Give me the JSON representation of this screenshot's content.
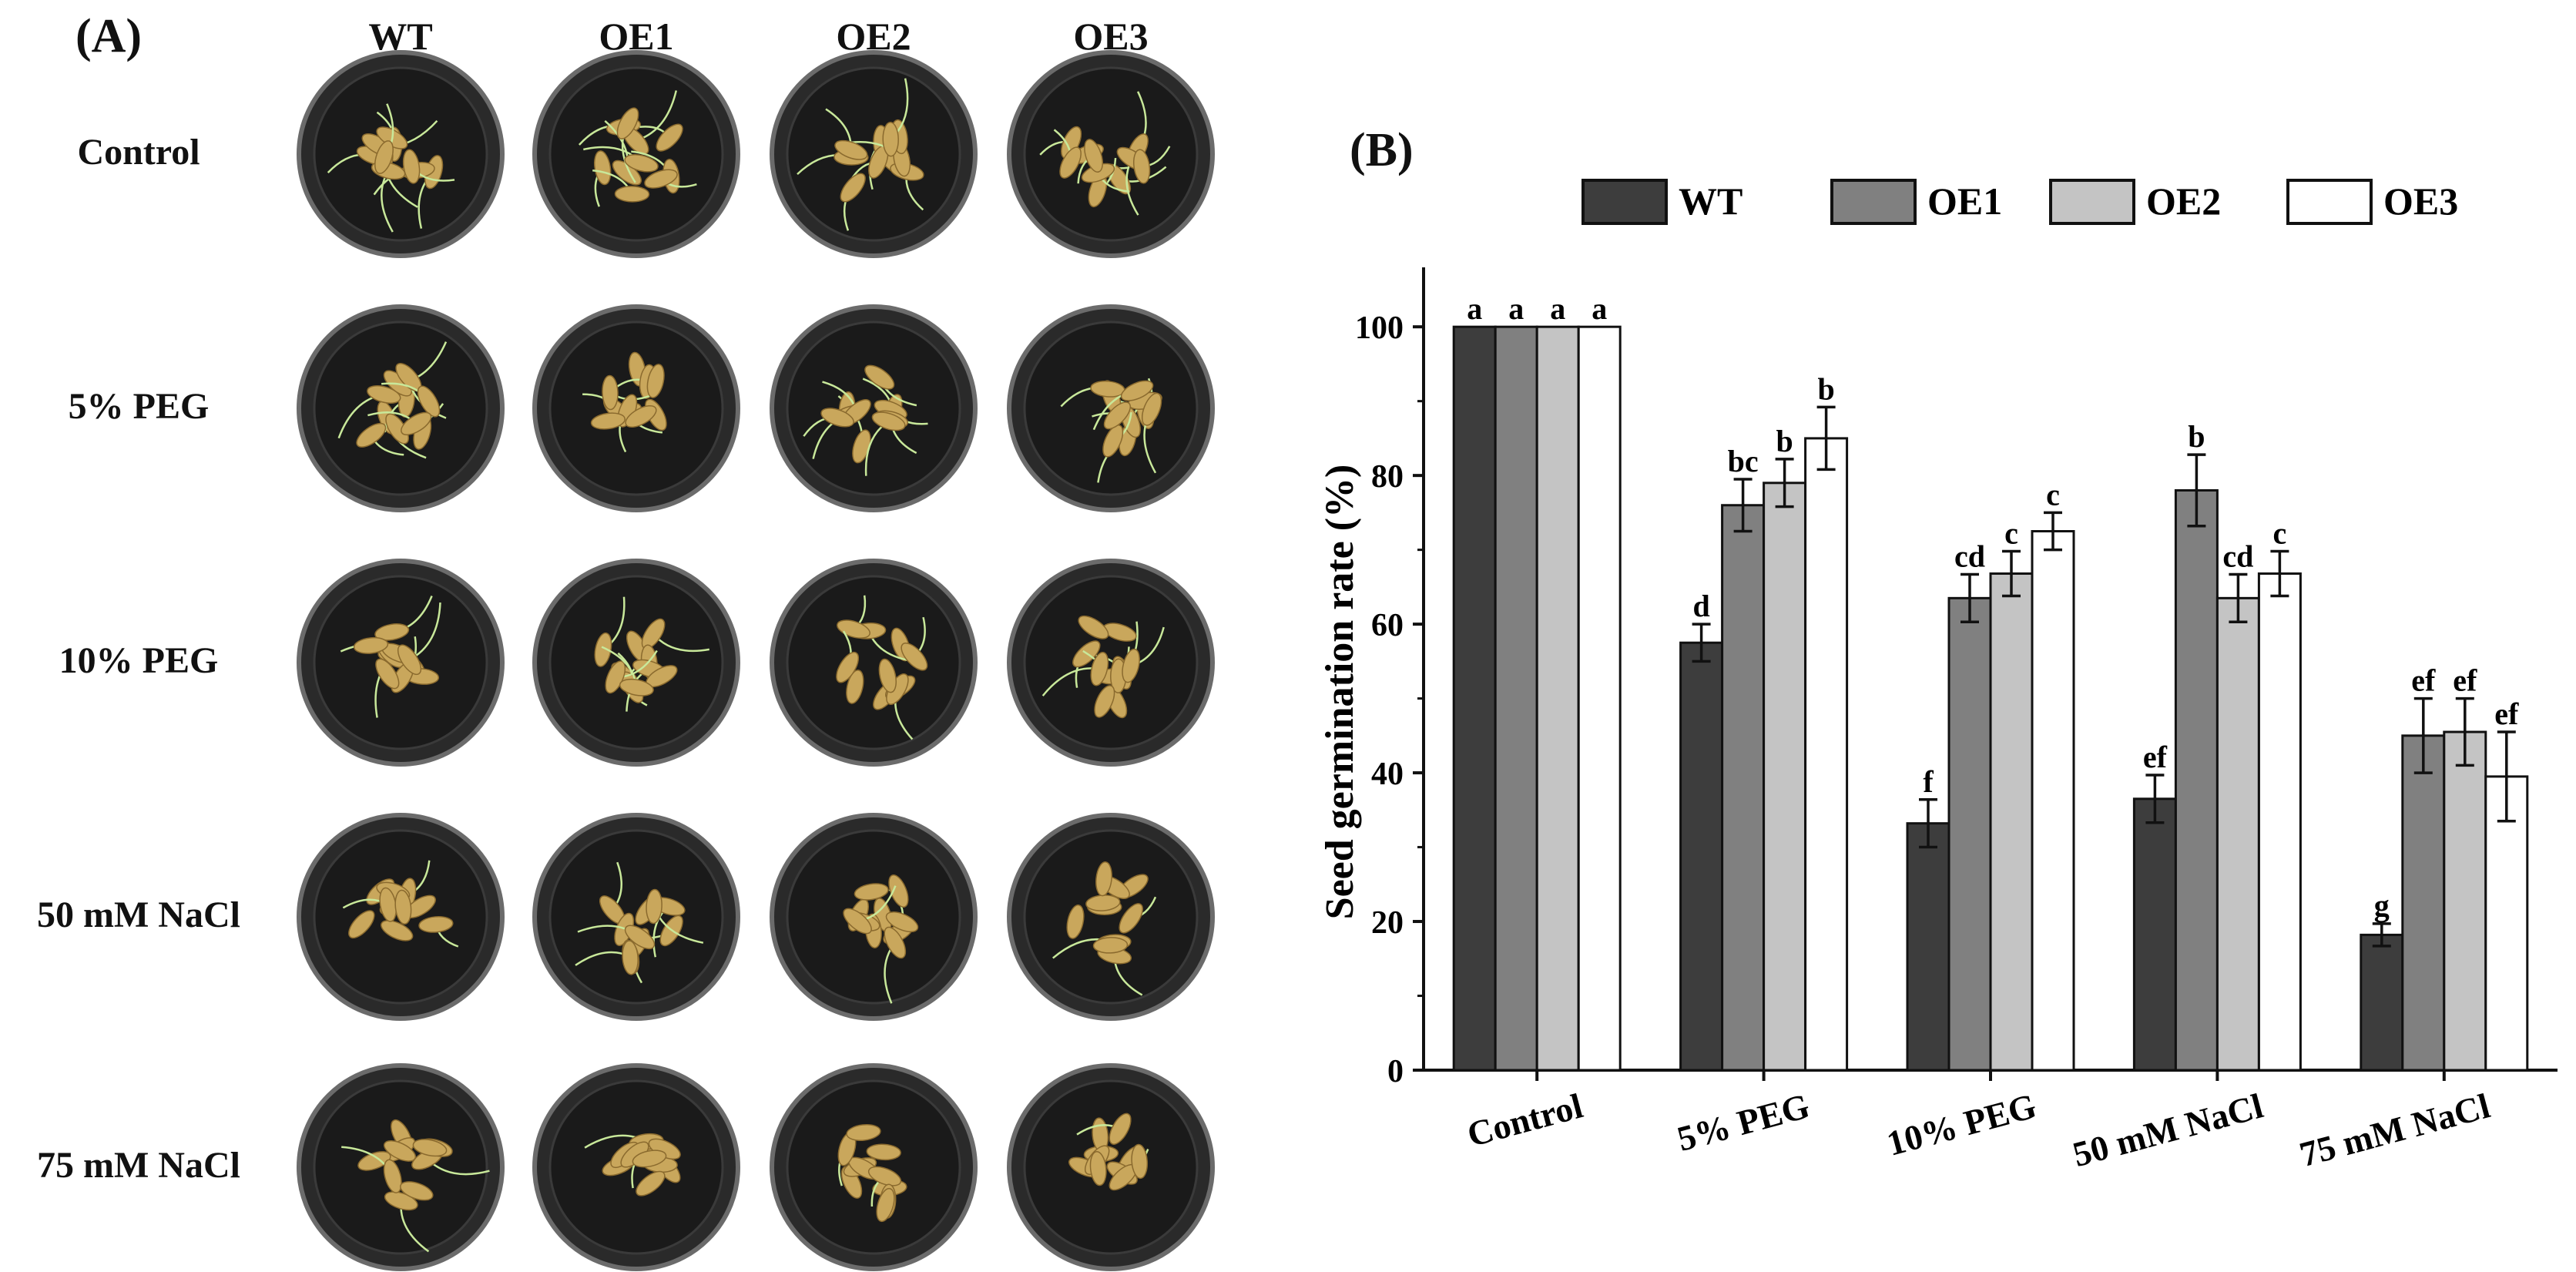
{
  "panel_a": {
    "label": "(A)",
    "columns": [
      "WT",
      "OE1",
      "OE2",
      "OE3"
    ],
    "rows": [
      "Control",
      "5% PEG",
      "10% PEG",
      "50 mM NaCl",
      "75 mM NaCl"
    ],
    "sprout_level": [
      [
        0.95,
        0.95,
        0.9,
        0.95
      ],
      [
        0.75,
        0.8,
        0.8,
        0.85
      ],
      [
        0.45,
        0.6,
        0.6,
        0.65
      ],
      [
        0.25,
        0.55,
        0.5,
        0.3
      ],
      [
        0.05,
        0.2,
        0.2,
        0.15
      ]
    ],
    "colors": {
      "dish": "#1a1a1a",
      "rim": "#6b6b6b",
      "seed": "#c9a75c",
      "sprout": "#c8e89a"
    }
  },
  "panel_b": {
    "label": "(B)"
  },
  "chart_data": {
    "type": "bar",
    "categories": [
      "Control",
      "5% PEG",
      "10% PEG",
      "50 mM NaCl",
      "75 mM NaCl"
    ],
    "series": [
      {
        "name": "WT",
        "color": "#3d3d3d",
        "values": [
          100,
          57.5,
          33.2,
          36.5,
          18.2
        ],
        "errors": [
          0,
          2.5,
          3.2,
          3.2,
          1.5
        ],
        "letters": [
          "a",
          "d",
          "f",
          "ef",
          "g"
        ]
      },
      {
        "name": "OE1",
        "color": "#808080",
        "values": [
          100,
          76,
          63.5,
          78,
          45
        ],
        "errors": [
          0,
          3.5,
          3.2,
          4.8,
          5
        ],
        "letters": [
          "a",
          "bc",
          "cd",
          "b",
          "ef"
        ]
      },
      {
        "name": "OE2",
        "color": "#c4c4c4",
        "values": [
          100,
          79,
          66.8,
          63.5,
          45.5
        ],
        "errors": [
          0,
          3.2,
          3,
          3.2,
          4.5
        ],
        "letters": [
          "a",
          "b",
          "c",
          "cd",
          "ef"
        ]
      },
      {
        "name": "OE3",
        "color": "#ffffff",
        "values": [
          100,
          85,
          72.5,
          66.8,
          39.5
        ],
        "errors": [
          0,
          4.2,
          2.5,
          3,
          6
        ],
        "letters": [
          "a",
          "b",
          "c",
          "c",
          "ef"
        ]
      }
    ],
    "ylabel": "Seed germination rate (%)",
    "xlabel": "",
    "ylim": [
      0,
      100
    ],
    "yticks": [
      0,
      20,
      40,
      60,
      80,
      100
    ],
    "grid": false,
    "legend": "top"
  }
}
